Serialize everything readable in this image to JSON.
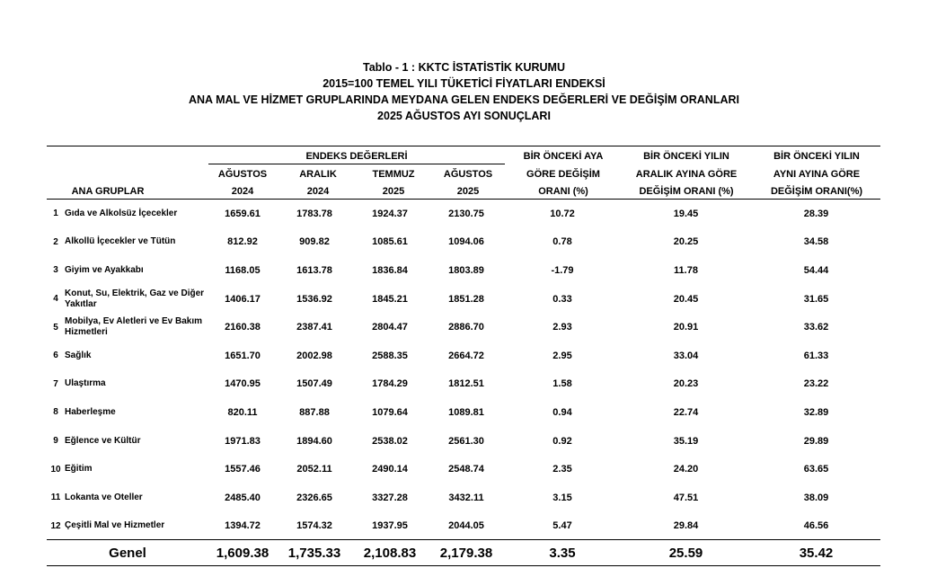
{
  "title_lines": [
    "Tablo - 1 :   KKTC  İSTATİSTİK KURUMU",
    "2015=100 TEMEL YILI TÜKETİCİ FİYATLARI ENDEKSİ",
    "ANA MAL VE HİZMET GRUPLARINDA MEYDANA GELEN ENDEKS DEĞERLERİ VE DEĞİŞİM ORANLARI",
    "2025 AĞUSTOS AYI SONUÇLARI"
  ],
  "header": {
    "group_label": "ANA GRUPLAR",
    "index_group": "ENDEKS DEĞERLERİ",
    "index_cols": [
      {
        "month": "AĞUSTOS",
        "year": "2024"
      },
      {
        "month": "ARALIK",
        "year": "2024"
      },
      {
        "month": "TEMMUZ",
        "year": "2025"
      },
      {
        "month": "AĞUSTOS",
        "year": "2025"
      }
    ],
    "change_cols": [
      {
        "l1": "BİR ÖNCEKİ AYA",
        "l2": "GÖRE DEĞİŞİM",
        "l3": "ORANI (%)"
      },
      {
        "l1": "BİR ÖNCEKİ YILIN",
        "l2": "ARALIK AYINA GÖRE",
        "l3": "DEĞİŞİM ORANI (%)"
      },
      {
        "l1": "BİR ÖNCEKİ YILIN",
        "l2": "AYNI AYINA GÖRE",
        "l3": "DEĞİŞİM ORANI(%)"
      }
    ]
  },
  "rows": [
    {
      "no": "1",
      "name": "Gıda ve Alkolsüz İçecekler",
      "v": [
        "1659.61",
        "1783.78",
        "1924.37",
        "2130.75",
        "10.72",
        "19.45",
        "28.39"
      ]
    },
    {
      "no": "2",
      "name": "Alkollü İçecekler ve Tütün",
      "v": [
        "812.92",
        "909.82",
        "1085.61",
        "1094.06",
        "0.78",
        "20.25",
        "34.58"
      ]
    },
    {
      "no": "3",
      "name": "Giyim ve Ayakkabı",
      "v": [
        "1168.05",
        "1613.78",
        "1836.84",
        "1803.89",
        "-1.79",
        "11.78",
        "54.44"
      ]
    },
    {
      "no": "4",
      "name": "Konut, Su, Elektrik, Gaz ve Diğer Yakıtlar",
      "v": [
        "1406.17",
        "1536.92",
        "1845.21",
        "1851.28",
        "0.33",
        "20.45",
        "31.65"
      ]
    },
    {
      "no": "5",
      "name": "Mobilya, Ev Aletleri ve Ev Bakım Hizmetleri",
      "v": [
        "2160.38",
        "2387.41",
        "2804.47",
        "2886.70",
        "2.93",
        "20.91",
        "33.62"
      ]
    },
    {
      "no": "6",
      "name": "Sağlık",
      "v": [
        "1651.70",
        "2002.98",
        "2588.35",
        "2664.72",
        "2.95",
        "33.04",
        "61.33"
      ]
    },
    {
      "no": "7",
      "name": "Ulaştırma",
      "v": [
        "1470.95",
        "1507.49",
        "1784.29",
        "1812.51",
        "1.58",
        "20.23",
        "23.22"
      ]
    },
    {
      "no": "8",
      "name": "Haberleşme",
      "v": [
        "820.11",
        "887.88",
        "1079.64",
        "1089.81",
        "0.94",
        "22.74",
        "32.89"
      ]
    },
    {
      "no": "9",
      "name": "Eğlence ve Kültür",
      "v": [
        "1971.83",
        "1894.60",
        "2538.02",
        "2561.30",
        "0.92",
        "35.19",
        "29.89"
      ]
    },
    {
      "no": "10",
      "name": "Eğitim",
      "v": [
        "1557.46",
        "2052.11",
        "2490.14",
        "2548.74",
        "2.35",
        "24.20",
        "63.65"
      ]
    },
    {
      "no": "11",
      "name": "Lokanta ve Oteller",
      "v": [
        "2485.40",
        "2326.65",
        "3327.28",
        "3432.11",
        "3.15",
        "47.51",
        "38.09"
      ]
    },
    {
      "no": "12",
      "name": "Çeşitli Mal ve Hizmetler",
      "v": [
        "1394.72",
        "1574.32",
        "1937.95",
        "2044.05",
        "5.47",
        "29.84",
        "46.56"
      ]
    }
  ],
  "total": {
    "label": "Genel",
    "v": [
      "1,609.38",
      "1,735.33",
      "2,108.83",
      "2,179.38",
      "3.35",
      "25.59",
      "35.42"
    ]
  }
}
